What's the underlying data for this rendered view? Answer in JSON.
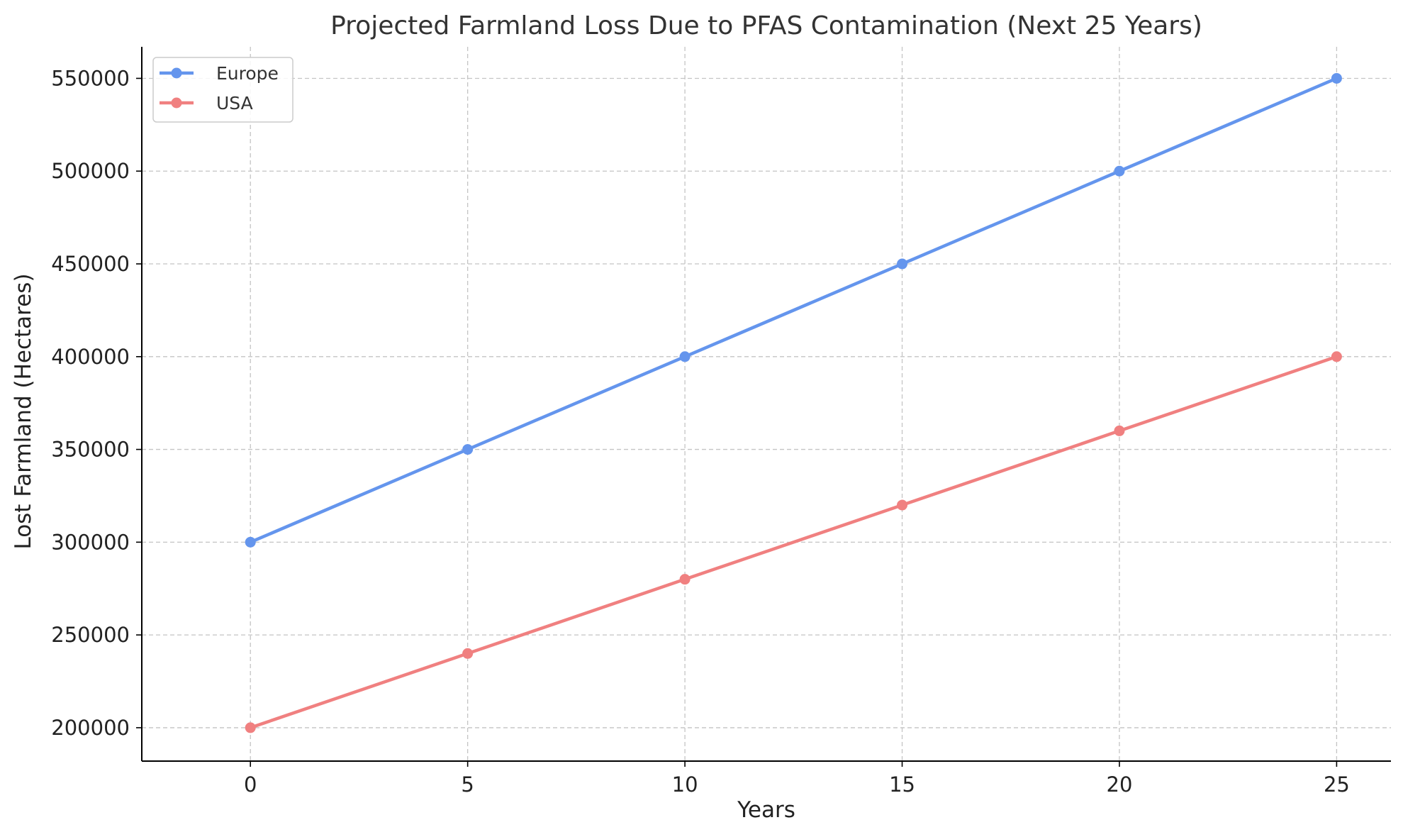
{
  "chart_data": {
    "type": "line",
    "title": "Projected Farmland Loss Due to PFAS Contamination (Next 25 Years)",
    "xlabel": "Years",
    "ylabel": "Lost Farmland (Hectares)",
    "x": [
      0,
      5,
      10,
      15,
      20,
      25
    ],
    "xlim": [
      -2.5,
      26.25
    ],
    "ylim": [
      182000,
      567000
    ],
    "x_ticks": [
      0,
      5,
      10,
      15,
      20,
      25
    ],
    "y_ticks": [
      200000,
      250000,
      300000,
      350000,
      400000,
      450000,
      500000,
      550000
    ],
    "grid": true,
    "legend_position": "top-left",
    "series": [
      {
        "name": "Europe",
        "color": "#6495ED",
        "values": [
          300000,
          350000,
          400000,
          450000,
          500000,
          550000
        ]
      },
      {
        "name": "USA",
        "color": "#F08080",
        "values": [
          200000,
          240000,
          280000,
          320000,
          360000,
          400000
        ]
      }
    ]
  }
}
